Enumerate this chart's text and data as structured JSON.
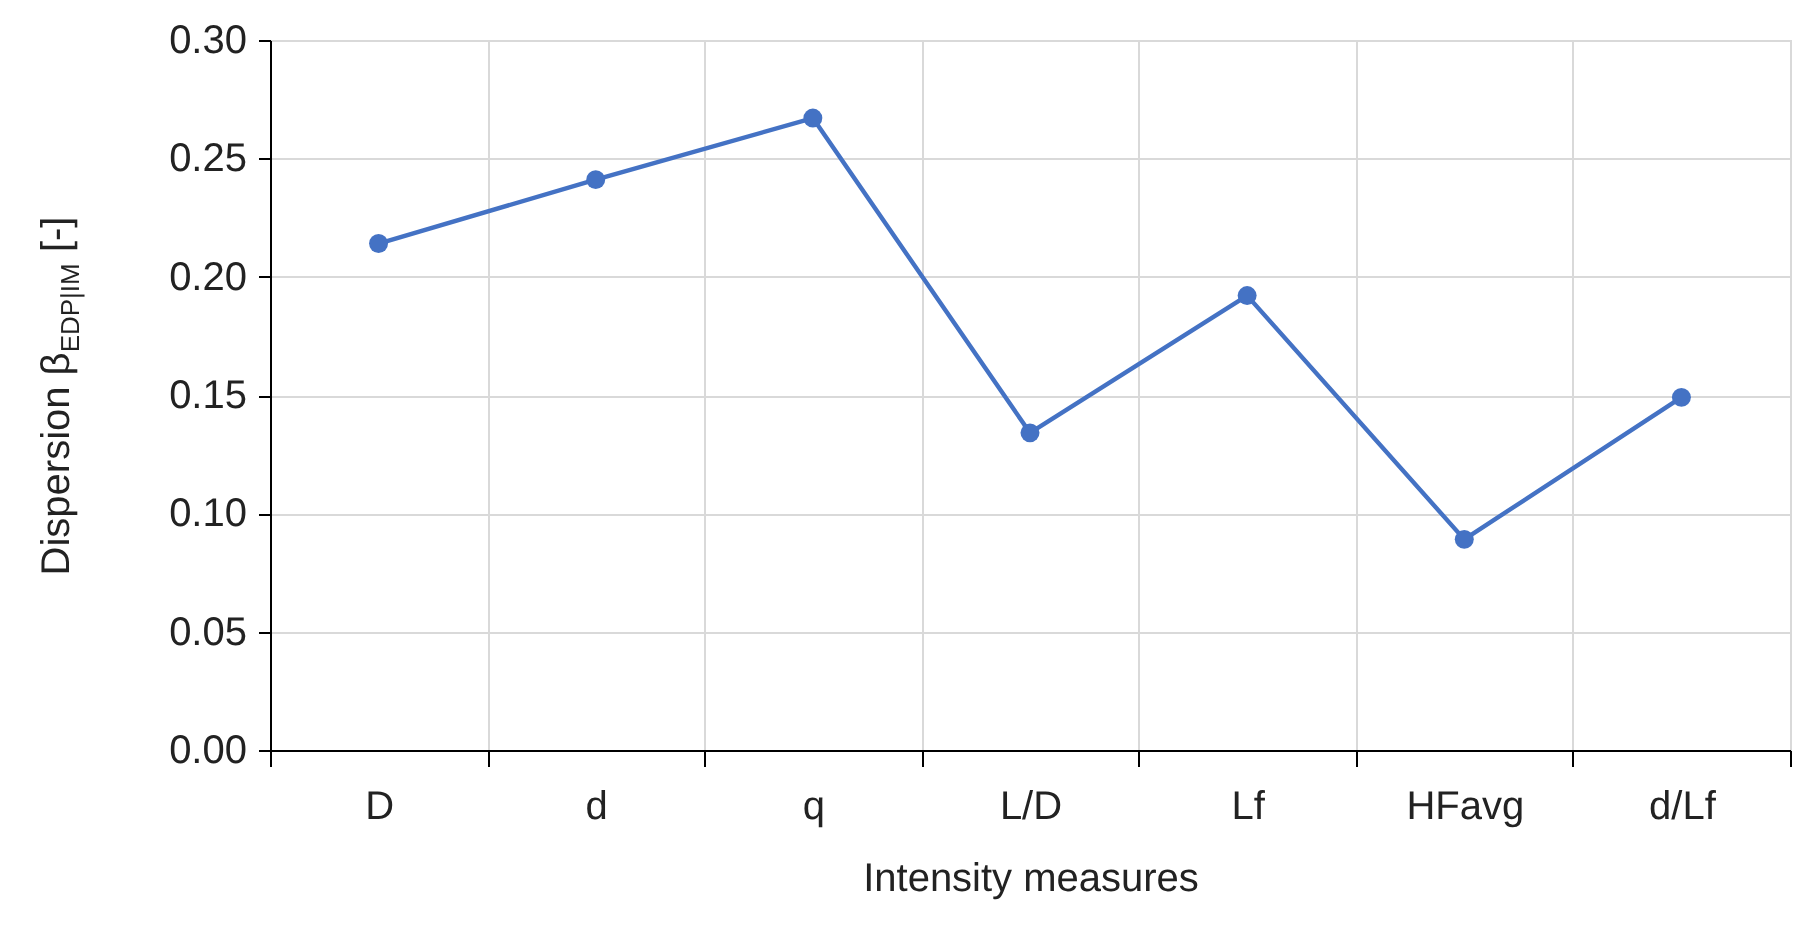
{
  "chart_data": {
    "type": "line",
    "xlabel": "Intensity measures",
    "ylabel": "Dispersion β$_{EDP|IM}$ [-]",
    "categories": [
      "D",
      "d",
      "q",
      "L/D",
      "Lf",
      "HFavg",
      "d/Lf"
    ],
    "series": [
      {
        "color": "#4472c4",
        "values": [
          0.214,
          0.241,
          0.267,
          0.134,
          0.192,
          0.089,
          0.149
        ]
      }
    ],
    "ylim": [
      0,
      0.3
    ],
    "yticks": [
      {
        "value": 0,
        "label": "0.00"
      },
      {
        "value": 0.05,
        "label": "0.05"
      },
      {
        "value": 0.1,
        "label": "0.10"
      },
      {
        "value": 0.15,
        "label": "0.15"
      },
      {
        "value": 0.2,
        "label": "0.20"
      },
      {
        "value": 0.25,
        "label": "0.25"
      },
      {
        "value": 0.3,
        "label": "0.30"
      }
    ],
    "grid": true,
    "marker": "circle",
    "line_style": "solid"
  }
}
